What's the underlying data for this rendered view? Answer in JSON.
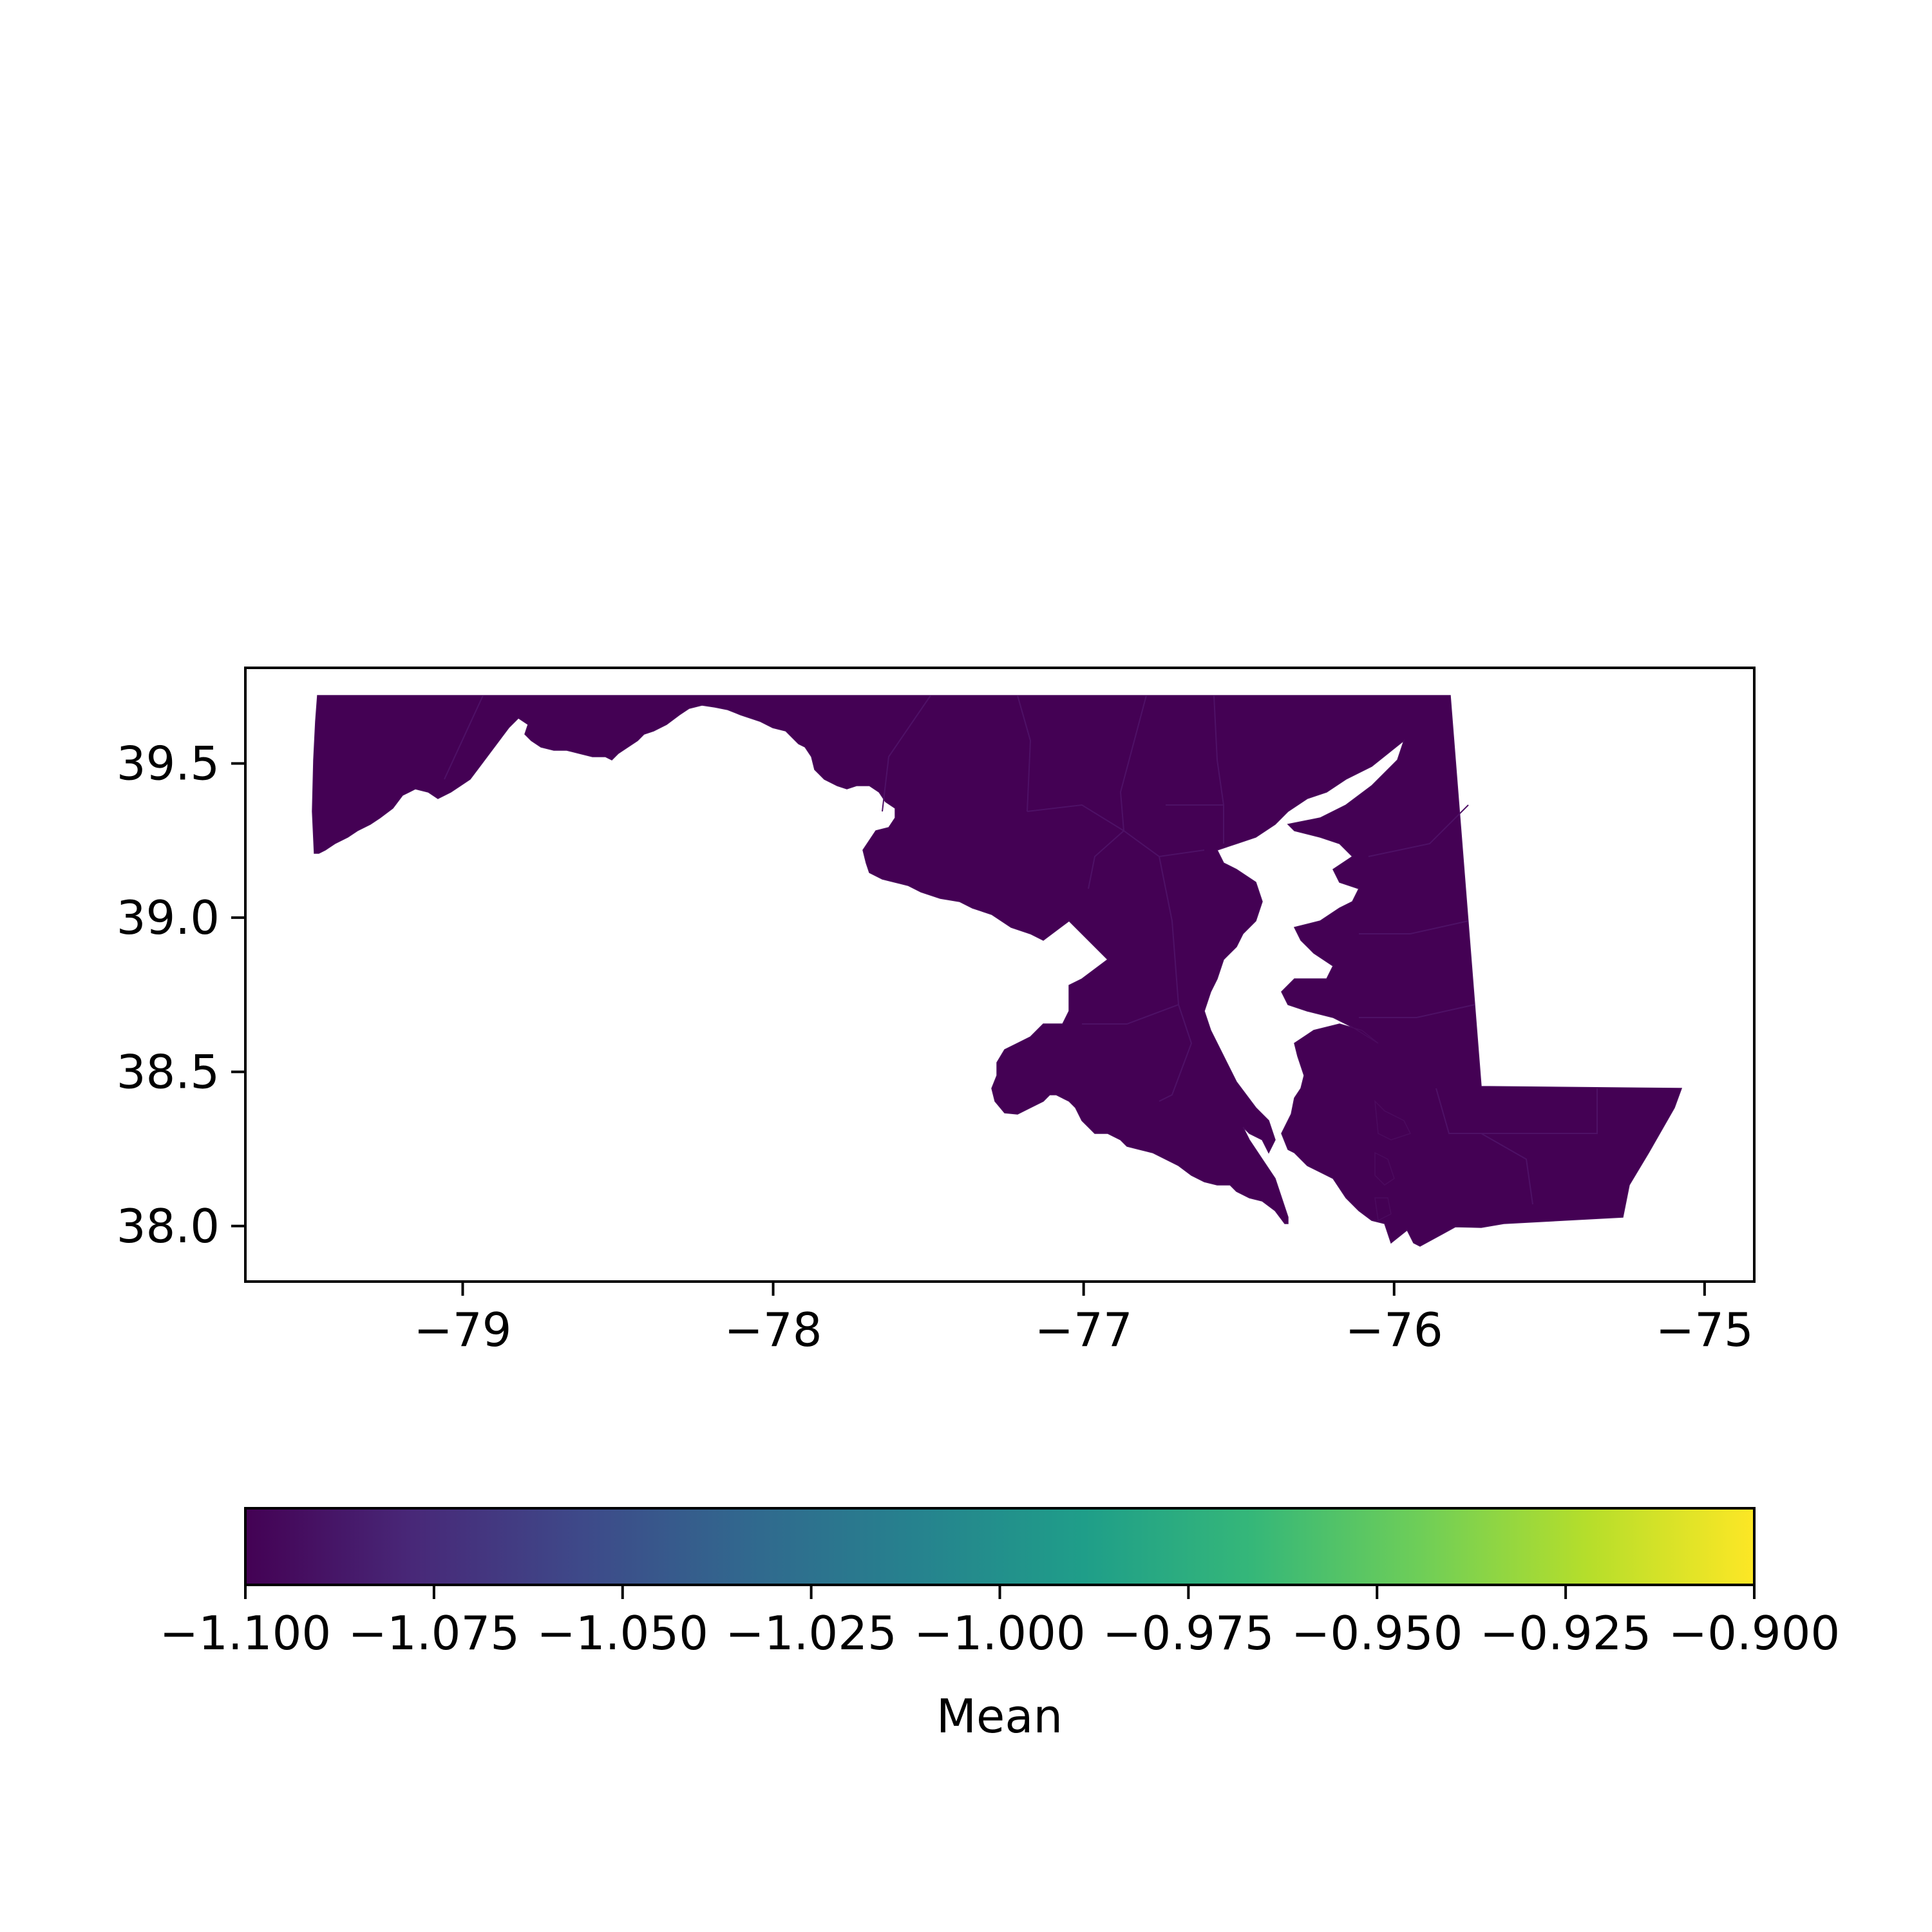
{
  "chart_data": {
    "type": "choropleth",
    "region": "Maryland",
    "fill_value": -1.1,
    "fill_color": "#440154",
    "x_axis": {
      "ticks": [
        -79,
        -78,
        -77,
        -76,
        -75
      ],
      "tick_labels": [
        "−79",
        "−78",
        "−77",
        "−76",
        "−75"
      ],
      "range": [
        -79.7,
        -74.84
      ]
    },
    "y_axis": {
      "ticks": [
        38.0,
        38.5,
        39.0,
        39.5
      ],
      "tick_labels": [
        "38.0",
        "38.5",
        "39.0",
        "39.5"
      ],
      "range": [
        37.82,
        39.81
      ]
    },
    "colorbar": {
      "label": "Mean",
      "colormap": "viridis",
      "range": [
        -1.1,
        -0.9
      ],
      "ticks": [
        -1.1,
        -1.075,
        -1.05,
        -1.025,
        -1.0,
        -0.975,
        -0.95,
        -0.925,
        -0.9
      ],
      "tick_labels": [
        "−1.100",
        "−1.075",
        "−1.050",
        "−1.025",
        "−1.000",
        "−0.975",
        "−0.950",
        "−0.925",
        "−0.900"
      ],
      "stops": [
        "#440154",
        "#482878",
        "#3e4989",
        "#31688e",
        "#26828e",
        "#1f9e89",
        "#35b779",
        "#6ece58",
        "#b5de2b",
        "#fde725"
      ]
    }
  }
}
